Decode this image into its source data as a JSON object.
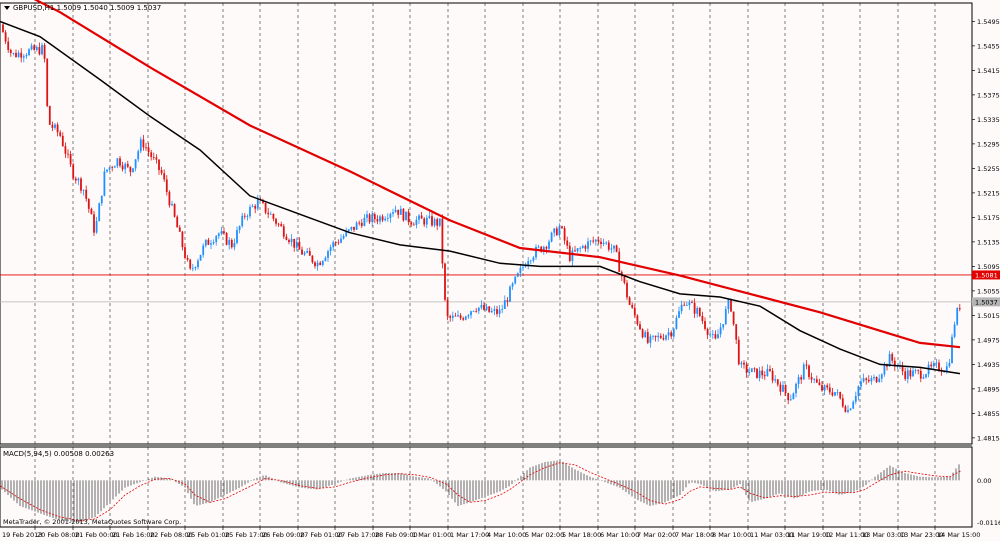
{
  "symbol_header": "GBPUSD,H1  1.5009 1.5040 1.5009 1.5037",
  "colors": {
    "background": "#fffafa",
    "bull_candle": "#1e90ff",
    "bear_candle": "#dc1414",
    "slow_ma": "#e30000",
    "fast_ma": "#000000",
    "macd_hist": "#808080",
    "macd_signal": "#e30000",
    "grid": "#000000",
    "level_line": "#e30000",
    "price_line": "#b4b4b4"
  },
  "price_pane": {
    "y_ticks": [
      "1.5495",
      "1.5455",
      "1.5415",
      "1.5375",
      "1.5335",
      "1.5295",
      "1.5255",
      "1.5215",
      "1.5175",
      "1.5135",
      "1.5095",
      "1.5055",
      "1.5015",
      "1.4975",
      "1.4935",
      "1.4895",
      "1.4855",
      "1.4815"
    ],
    "level_label": "1.5081",
    "price_label": "1.5037"
  },
  "macd_pane": {
    "title": "MACD(5,94,5) 0.00508 0.00263",
    "y_ticks": [
      "0.00",
      "-0.01163"
    ]
  },
  "copyright": "MetaTrader, © 2001-2013, MetaQuotes Software Corp.",
  "x_ticks": [
    "19 Feb 2013",
    "20 Feb 08:00",
    "21 Feb 00:00",
    "21 Feb 16:00",
    "22 Feb 08:00",
    "25 Feb 01:00",
    "25 Feb 17:00",
    "26 Feb 09:00",
    "27 Feb 01:00",
    "27 Feb 17:00",
    "28 Feb 09:00",
    "1 Mar 01:00",
    "1 Mar 17:00",
    "4 Mar 10:00",
    "5 Mar 02:00",
    "5 Mar 18:00",
    "6 Mar 10:00",
    "7 Mar 02:00",
    "7 Mar 18:00",
    "8 Mar 10:00",
    "11 Mar 03:00",
    "11 Mar 19:00",
    "12 Mar 11:00",
    "13 Mar 03:00",
    "13 Mar 23:00",
    "14 Mar 15:00"
  ],
  "chart_data": {
    "type": "candlestick",
    "symbol": "GBPUSD",
    "timeframe": "H1",
    "last_ohlc": {
      "open": 1.5009,
      "high": 1.504,
      "low": 1.5009,
      "close": 1.5037
    },
    "horizontal_level": 1.5081,
    "current_price": 1.5037,
    "y_range": [
      1.4805,
      1.5525
    ],
    "grid": "vertical dashed",
    "close_path": [
      [
        0,
        1.549
      ],
      [
        12,
        1.544
      ],
      [
        24,
        1.5445
      ],
      [
        44,
        1.545
      ],
      [
        48,
        1.533
      ],
      [
        60,
        1.531
      ],
      [
        72,
        1.525
      ],
      [
        84,
        1.522
      ],
      [
        95,
        1.515
      ],
      [
        105,
        1.525
      ],
      [
        118,
        1.527
      ],
      [
        130,
        1.525
      ],
      [
        142,
        1.53
      ],
      [
        153,
        1.527
      ],
      [
        162,
        1.5245
      ],
      [
        190,
        1.5085
      ],
      [
        205,
        1.513
      ],
      [
        218,
        1.515
      ],
      [
        232,
        1.513
      ],
      [
        245,
        1.518
      ],
      [
        258,
        1.52
      ],
      [
        270,
        1.518
      ],
      [
        285,
        1.515
      ],
      [
        300,
        1.512
      ],
      [
        318,
        1.51
      ],
      [
        332,
        1.513
      ],
      [
        348,
        1.515
      ],
      [
        362,
        1.517
      ],
      [
        380,
        1.5175
      ],
      [
        395,
        1.519
      ],
      [
        410,
        1.517
      ],
      [
        425,
        1.517
      ],
      [
        440,
        1.5165
      ],
      [
        446,
        1.501
      ],
      [
        460,
        1.501
      ],
      [
        475,
        1.503
      ],
      [
        490,
        1.502
      ],
      [
        500,
        1.502
      ],
      [
        515,
        1.507
      ],
      [
        528,
        1.511
      ],
      [
        545,
        1.513
      ],
      [
        560,
        1.516
      ],
      [
        570,
        1.511
      ],
      [
        585,
        1.513
      ],
      [
        600,
        1.514
      ],
      [
        615,
        1.512
      ],
      [
        630,
        1.503
      ],
      [
        648,
        1.497
      ],
      [
        660,
        1.498
      ],
      [
        672,
        1.499
      ],
      [
        684,
        1.504
      ],
      [
        698,
        1.502
      ],
      [
        715,
        1.497
      ],
      [
        730,
        1.504
      ],
      [
        740,
        1.493
      ],
      [
        755,
        1.492
      ],
      [
        770,
        1.492
      ],
      [
        790,
        1.488
      ],
      [
        805,
        1.493
      ],
      [
        820,
        1.4895
      ],
      [
        835,
        1.489
      ],
      [
        848,
        1.486
      ],
      [
        860,
        1.4905
      ],
      [
        875,
        1.491
      ],
      [
        890,
        1.4945
      ],
      [
        905,
        1.492
      ],
      [
        920,
        1.492
      ],
      [
        935,
        1.493
      ],
      [
        948,
        1.493
      ],
      [
        955,
        1.5009
      ],
      [
        961,
        1.5037
      ]
    ],
    "series": [
      {
        "id": "slow_ma",
        "points": [
          [
            0,
            1.556
          ],
          [
            60,
            1.551
          ],
          [
            150,
            1.542
          ],
          [
            250,
            1.5325
          ],
          [
            350,
            1.525
          ],
          [
            450,
            1.517
          ],
          [
            520,
            1.5125
          ],
          [
            600,
            1.511
          ],
          [
            680,
            1.508
          ],
          [
            750,
            1.505
          ],
          [
            820,
            1.502
          ],
          [
            890,
            1.4985
          ],
          [
            920,
            1.497
          ],
          [
            960,
            1.4963
          ]
        ]
      },
      {
        "id": "fast_ma",
        "points": [
          [
            0,
            1.5495
          ],
          [
            40,
            1.547
          ],
          [
            100,
            1.54
          ],
          [
            150,
            1.534
          ],
          [
            200,
            1.5285
          ],
          [
            250,
            1.521
          ],
          [
            300,
            1.518
          ],
          [
            350,
            1.515
          ],
          [
            400,
            1.513
          ],
          [
            450,
            1.512
          ],
          [
            500,
            1.51
          ],
          [
            540,
            1.5095
          ],
          [
            600,
            1.5095
          ],
          [
            640,
            1.507
          ],
          [
            680,
            1.505
          ],
          [
            720,
            1.5045
          ],
          [
            760,
            1.503
          ],
          [
            800,
            1.499
          ],
          [
            840,
            1.496
          ],
          [
            880,
            1.4935
          ],
          [
            920,
            1.493
          ],
          [
            960,
            1.492
          ]
        ]
      }
    ],
    "macd": {
      "title": "MACD(5,94,5)",
      "main": 0.00508,
      "signal": 0.00263,
      "y_range": [
        -0.01163,
        0.008
      ],
      "histogram_path": [
        [
          0,
          -0.002
        ],
        [
          20,
          -0.007
        ],
        [
          40,
          -0.009
        ],
        [
          60,
          -0.011
        ],
        [
          80,
          -0.0115
        ],
        [
          95,
          -0.01
        ],
        [
          110,
          -0.006
        ],
        [
          125,
          -0.002
        ],
        [
          140,
          -0.0005
        ],
        [
          155,
          0.001
        ],
        [
          170,
          0.0005
        ],
        [
          185,
          -0.002
        ],
        [
          195,
          -0.007
        ],
        [
          210,
          -0.006
        ],
        [
          225,
          -0.004
        ],
        [
          240,
          -0.002
        ],
        [
          255,
          0.0005
        ],
        [
          265,
          0.0015
        ],
        [
          280,
          -0.0005
        ],
        [
          300,
          -0.002
        ],
        [
          318,
          -0.0025
        ],
        [
          335,
          -0.001
        ],
        [
          350,
          0.0005
        ],
        [
          370,
          0.0015
        ],
        [
          385,
          0.002
        ],
        [
          400,
          0.002
        ],
        [
          415,
          0.001
        ],
        [
          430,
          0.0005
        ],
        [
          446,
          -0.003
        ],
        [
          458,
          -0.007
        ],
        [
          470,
          -0.006
        ],
        [
          485,
          -0.0045
        ],
        [
          500,
          -0.003
        ],
        [
          510,
          -0.0015
        ],
        [
          520,
          0.001
        ],
        [
          530,
          0.0035
        ],
        [
          545,
          0.005
        ],
        [
          560,
          0.0055
        ],
        [
          575,
          0.003
        ],
        [
          590,
          0.001
        ],
        [
          605,
          -0.0005
        ],
        [
          620,
          -0.002
        ],
        [
          635,
          -0.005
        ],
        [
          650,
          -0.007
        ],
        [
          665,
          -0.006
        ],
        [
          680,
          -0.004
        ],
        [
          690,
          -0.0005
        ],
        [
          700,
          -0.001
        ],
        [
          715,
          -0.003
        ],
        [
          730,
          -0.0025
        ],
        [
          740,
          -0.001
        ],
        [
          750,
          -0.006
        ],
        [
          765,
          -0.005
        ],
        [
          780,
          -0.0035
        ],
        [
          795,
          -0.005
        ],
        [
          810,
          -0.003
        ],
        [
          825,
          -0.0025
        ],
        [
          840,
          -0.004
        ],
        [
          855,
          -0.003
        ],
        [
          865,
          -0.0015
        ],
        [
          875,
          0.001
        ],
        [
          890,
          0.004
        ],
        [
          905,
          0.002
        ],
        [
          920,
          0.001
        ],
        [
          935,
          0.0008
        ],
        [
          950,
          0.001
        ],
        [
          961,
          0.0051
        ]
      ],
      "signal_path": [
        [
          0,
          -0.0015
        ],
        [
          20,
          -0.005
        ],
        [
          40,
          -0.008
        ],
        [
          60,
          -0.01
        ],
        [
          80,
          -0.011
        ],
        [
          95,
          -0.0105
        ],
        [
          110,
          -0.008
        ],
        [
          125,
          -0.004
        ],
        [
          140,
          -0.0015
        ],
        [
          155,
          0.0003
        ],
        [
          170,
          0.0005
        ],
        [
          185,
          -0.001
        ],
        [
          195,
          -0.004
        ],
        [
          210,
          -0.006
        ],
        [
          225,
          -0.005
        ],
        [
          240,
          -0.003
        ],
        [
          255,
          -0.001
        ],
        [
          265,
          0.0005
        ],
        [
          280,
          0.0
        ],
        [
          300,
          -0.0015
        ],
        [
          318,
          -0.0022
        ],
        [
          335,
          -0.0018
        ],
        [
          350,
          -0.0005
        ],
        [
          370,
          0.0008
        ],
        [
          385,
          0.0015
        ],
        [
          400,
          0.0018
        ],
        [
          415,
          0.0015
        ],
        [
          430,
          0.0008
        ],
        [
          446,
          -0.001
        ],
        [
          458,
          -0.004
        ],
        [
          470,
          -0.006
        ],
        [
          485,
          -0.0055
        ],
        [
          500,
          -0.004
        ],
        [
          510,
          -0.0025
        ],
        [
          520,
          -0.0005
        ],
        [
          530,
          0.0015
        ],
        [
          545,
          0.0035
        ],
        [
          560,
          0.0048
        ],
        [
          575,
          0.0042
        ],
        [
          590,
          0.0022
        ],
        [
          605,
          0.0005
        ],
        [
          620,
          -0.0012
        ],
        [
          635,
          -0.003
        ],
        [
          650,
          -0.0055
        ],
        [
          665,
          -0.0065
        ],
        [
          680,
          -0.0052
        ],
        [
          690,
          -0.003
        ],
        [
          700,
          -0.0018
        ],
        [
          715,
          -0.0022
        ],
        [
          730,
          -0.0025
        ],
        [
          740,
          -0.0018
        ],
        [
          750,
          -0.0035
        ],
        [
          765,
          -0.0048
        ],
        [
          780,
          -0.0042
        ],
        [
          795,
          -0.0044
        ],
        [
          810,
          -0.004
        ],
        [
          825,
          -0.0032
        ],
        [
          840,
          -0.0034
        ],
        [
          855,
          -0.0033
        ],
        [
          865,
          -0.0025
        ],
        [
          875,
          -0.0008
        ],
        [
          890,
          0.0015
        ],
        [
          905,
          0.0025
        ],
        [
          920,
          0.0018
        ],
        [
          935,
          0.0012
        ],
        [
          950,
          0.001
        ],
        [
          961,
          0.0026
        ]
      ]
    }
  }
}
